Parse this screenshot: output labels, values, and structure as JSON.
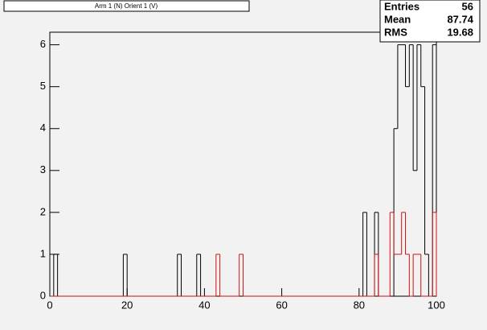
{
  "chart_data": {
    "type": "histogram",
    "title": "Arm 1 (N) Orient 1 (V)",
    "stats": {
      "labels": [
        "Entries",
        "Mean",
        "RMS"
      ],
      "values": [
        56,
        87.74,
        19.68
      ]
    },
    "bins": [
      0,
      1,
      2,
      3,
      4,
      5,
      6,
      7,
      8,
      9,
      10,
      11,
      12,
      13,
      14,
      15,
      16,
      17,
      18,
      19,
      20,
      21,
      22,
      23,
      24,
      25,
      26,
      27,
      28,
      29,
      30,
      31,
      32,
      33,
      34,
      35,
      36,
      37,
      38,
      39,
      40,
      41,
      42,
      43,
      44,
      45,
      46,
      47,
      48,
      49,
      50,
      51,
      52,
      53,
      54,
      55,
      56,
      57,
      58,
      59,
      60,
      61,
      62,
      63,
      64,
      65,
      66,
      67,
      68,
      69,
      70,
      71,
      72,
      73,
      74,
      75,
      76,
      77,
      78,
      79,
      80,
      81,
      82,
      83,
      84,
      85,
      86,
      87,
      88,
      89,
      90,
      91,
      92,
      93,
      94,
      95,
      96,
      97,
      98,
      99,
      100
    ],
    "series": [
      {
        "color": "#000000",
        "values": [
          0,
          1,
          0,
          0,
          0,
          0,
          0,
          0,
          0,
          0,
          0,
          0,
          0,
          0,
          0,
          0,
          0,
          0,
          0,
          1,
          0,
          0,
          0,
          0,
          0,
          0,
          0,
          0,
          0,
          0,
          0,
          0,
          0,
          1,
          0,
          0,
          0,
          0,
          1,
          0,
          0,
          0,
          0,
          0,
          0,
          0,
          0,
          0,
          0,
          0,
          0,
          0,
          0,
          0,
          0,
          0,
          0,
          0,
          0,
          0,
          0,
          0,
          0,
          0,
          0,
          0,
          0,
          0,
          0,
          0,
          0,
          0,
          0,
          0,
          0,
          0,
          0,
          0,
          0,
          0,
          0,
          2,
          0,
          0,
          2,
          0,
          0,
          0,
          0,
          4,
          6,
          6,
          5,
          6,
          3,
          6,
          5,
          1,
          0,
          6
        ]
      },
      {
        "color": "#d01010",
        "values": [
          0,
          0,
          0,
          0,
          0,
          0,
          0,
          0,
          0,
          0,
          0,
          0,
          0,
          0,
          0,
          0,
          0,
          0,
          0,
          0,
          0,
          0,
          0,
          0,
          0,
          0,
          0,
          0,
          0,
          0,
          0,
          0,
          0,
          0,
          0,
          0,
          0,
          0,
          0,
          0,
          0,
          0,
          0,
          1,
          0,
          0,
          0,
          0,
          0,
          1,
          0,
          0,
          0,
          0,
          0,
          0,
          0,
          0,
          0,
          0,
          0,
          0,
          0,
          0,
          0,
          0,
          0,
          0,
          0,
          0,
          0,
          0,
          0,
          0,
          0,
          0,
          0,
          0,
          0,
          0,
          0,
          0,
          0,
          0,
          1,
          0,
          0,
          0,
          2,
          1,
          1,
          2,
          1,
          0,
          1,
          1,
          0,
          0,
          0,
          2
        ]
      }
    ],
    "xlim": [
      0,
      100
    ],
    "xticks": [
      0,
      20,
      40,
      60,
      80,
      100
    ],
    "ylim": [
      0,
      6.3
    ],
    "yticks": [
      0,
      1,
      2,
      3,
      4,
      5,
      6
    ]
  }
}
